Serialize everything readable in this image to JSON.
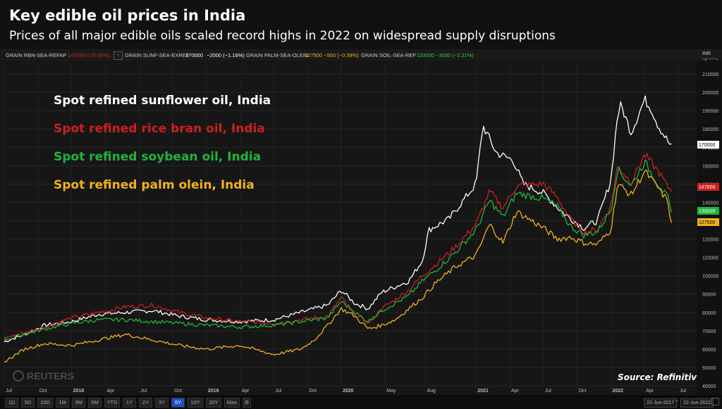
{
  "header": {
    "title": "Key edible oil prices in India",
    "subtitle": "Prices of all major edible oils scaled record highs in 2022 on widespread supply disruptions"
  },
  "legend_bar": {
    "rbn_name": "GRAIN RBN-SEA-REFAP",
    "rbn_value": "147000 0 (0.00%)",
    "sunf_name": "GRAIN SUNF-SEA-EXREF",
    "sunf_value": "170000",
    "sunf_change": "−2000 (−1.16%)",
    "palm_name": "GRAIN PALM-SEA-OLEIN",
    "palm_value": "127500 −500 (−0.39%)",
    "soil_name": "GRAIN SOIL-SEA-REF",
    "soil_value": "133000 −3000 (−2.21%)",
    "collapse_glyph": "‹",
    "currency": "INR",
    "currency_sub": "1"
  },
  "colors": {
    "sunflower": "#ffffff",
    "ricebran": "#cc1f1f",
    "soybean": "#1fb53a",
    "palm": "#f2b01e"
  },
  "watermark": "REUTERS",
  "source": "Source: Refinitiv",
  "range_buttons": [
    "1D",
    "5D",
    "10D",
    "1M",
    "3M",
    "6M",
    "YTD",
    "1Y",
    "2Y",
    "3Y",
    "5Y",
    "10Y",
    "20Y",
    "Max"
  ],
  "active_range": "5Y",
  "date_from": "22-Jun-2017",
  "date_sep": "~",
  "date_to": "22-Jun-2022",
  "chart_data": {
    "type": "line",
    "title": "Key edible oil prices in India",
    "ylim": [
      40000,
      215000
    ],
    "y_ticks": [
      40000,
      50000,
      60000,
      70000,
      80000,
      90000,
      100000,
      110000,
      120000,
      130000,
      140000,
      150000,
      160000,
      170000,
      180000,
      190000,
      200000,
      210000
    ],
    "x_ticks": [
      "Jul",
      "Oct",
      "2018",
      "Apr",
      "Jul",
      "Oct",
      "2019",
      "Apr",
      "Jul",
      "Oct",
      "2020",
      "May",
      "Aug",
      "2021",
      "Apr",
      "Jul",
      "Oct",
      "2022",
      "Apr",
      "Jul"
    ],
    "x_tick_pos": [
      0.0,
      0.05,
      0.1,
      0.15,
      0.2,
      0.25,
      0.3,
      0.35,
      0.4,
      0.45,
      0.5,
      0.565,
      0.625,
      0.7,
      0.75,
      0.8,
      0.85,
      0.9,
      0.95,
      1.0
    ],
    "x_range": [
      0,
      1
    ],
    "last_values": [
      {
        "label": "170000",
        "value": 170000,
        "color": "#ffffff"
      },
      {
        "label": "147000",
        "value": 147000,
        "color": "#cc1f1f"
      },
      {
        "label": "133000",
        "value": 133000,
        "color": "#1fb53a"
      },
      {
        "label": "127500",
        "value": 127500,
        "color": "#f2b01e"
      }
    ],
    "series": [
      {
        "name": "Spot refined sunflower oil, India",
        "color": "#ffffff",
        "x": [
          0,
          0.03,
          0.06,
          0.1,
          0.14,
          0.18,
          0.22,
          0.26,
          0.3,
          0.35,
          0.4,
          0.44,
          0.48,
          0.5,
          0.52,
          0.54,
          0.56,
          0.6,
          0.62,
          0.63,
          0.66,
          0.7,
          0.71,
          0.73,
          0.755,
          0.77,
          0.8,
          0.83,
          0.86,
          0.88,
          0.9,
          0.91,
          0.915,
          0.93,
          0.95,
          0.96,
          0.97,
          0.99
        ],
        "values": [
          64000,
          68000,
          73000,
          75000,
          79000,
          80000,
          81000,
          78000,
          76000,
          75000,
          76000,
          80000,
          84000,
          92000,
          85000,
          82000,
          91000,
          97000,
          108000,
          125000,
          131000,
          150000,
          182000,
          167000,
          163000,
          150000,
          145000,
          134000,
          126000,
          130000,
          152000,
          188000,
          193000,
          178000,
          196000,
          191000,
          182000,
          170000
        ]
      },
      {
        "name": "Spot refined rice bran oil, India",
        "color": "#cc1f1f",
        "x": [
          0,
          0.03,
          0.06,
          0.1,
          0.14,
          0.18,
          0.22,
          0.26,
          0.3,
          0.35,
          0.4,
          0.44,
          0.48,
          0.5,
          0.52,
          0.54,
          0.56,
          0.6,
          0.62,
          0.64,
          0.67,
          0.7,
          0.72,
          0.74,
          0.76,
          0.8,
          0.82,
          0.84,
          0.86,
          0.88,
          0.9,
          0.91,
          0.93,
          0.95,
          0.97,
          0.985,
          0.99
        ],
        "values": [
          66000,
          69000,
          72000,
          77000,
          80000,
          83000,
          84000,
          80000,
          77000,
          75000,
          74000,
          76000,
          78000,
          88000,
          79000,
          74000,
          82000,
          92000,
          100000,
          106000,
          116000,
          128000,
          146000,
          137000,
          149000,
          150000,
          143000,
          131000,
          124000,
          125000,
          138000,
          160000,
          151000,
          166000,
          157000,
          148000,
          147000
        ]
      },
      {
        "name": "Spot refined soybean oil, India",
        "color": "#1fb53a",
        "x": [
          0,
          0.03,
          0.06,
          0.1,
          0.14,
          0.18,
          0.22,
          0.26,
          0.3,
          0.35,
          0.4,
          0.44,
          0.48,
          0.5,
          0.52,
          0.54,
          0.56,
          0.6,
          0.62,
          0.64,
          0.67,
          0.7,
          0.72,
          0.74,
          0.76,
          0.8,
          0.82,
          0.84,
          0.86,
          0.88,
          0.9,
          0.91,
          0.93,
          0.95,
          0.97,
          0.985,
          0.99
        ],
        "values": [
          65000,
          68000,
          71000,
          74000,
          76000,
          76000,
          75000,
          74000,
          73000,
          72000,
          73000,
          75000,
          77000,
          86000,
          80000,
          75000,
          81000,
          89000,
          97000,
          103000,
          113000,
          125000,
          141000,
          132000,
          145000,
          142000,
          138000,
          127000,
          122000,
          124000,
          136000,
          158000,
          149000,
          162000,
          150000,
          142000,
          133000
        ]
      },
      {
        "name": "Spot refined palm olein, India",
        "color": "#f2b01e",
        "x": [
          0,
          0.03,
          0.06,
          0.1,
          0.14,
          0.18,
          0.22,
          0.26,
          0.3,
          0.35,
          0.4,
          0.44,
          0.46,
          0.48,
          0.5,
          0.52,
          0.54,
          0.56,
          0.58,
          0.6,
          0.62,
          0.64,
          0.67,
          0.7,
          0.72,
          0.74,
          0.76,
          0.8,
          0.82,
          0.84,
          0.86,
          0.88,
          0.9,
          0.91,
          0.93,
          0.95,
          0.97,
          0.985,
          0.99
        ],
        "values": [
          53000,
          60000,
          63000,
          62000,
          65000,
          68000,
          65000,
          62000,
          60000,
          62000,
          57000,
          60000,
          65000,
          73000,
          82000,
          78000,
          71000,
          73000,
          76000,
          82000,
          88000,
          96000,
          105000,
          111000,
          128000,
          118000,
          135000,
          126000,
          120000,
          121000,
          118000,
          117000,
          125000,
          150000,
          144000,
          157000,
          148000,
          140000,
          127500
        ]
      }
    ],
    "labels": [
      {
        "text": "Spot refined sunflower oil, India",
        "color": "#ffffff"
      },
      {
        "text": "Spot refined rice bran oil, India",
        "color": "#cc1f1f"
      },
      {
        "text": "Spot refined soybean oil, India",
        "color": "#1fb53a"
      },
      {
        "text": "Spot refined palm olein, India",
        "color": "#f2b01e"
      }
    ]
  }
}
